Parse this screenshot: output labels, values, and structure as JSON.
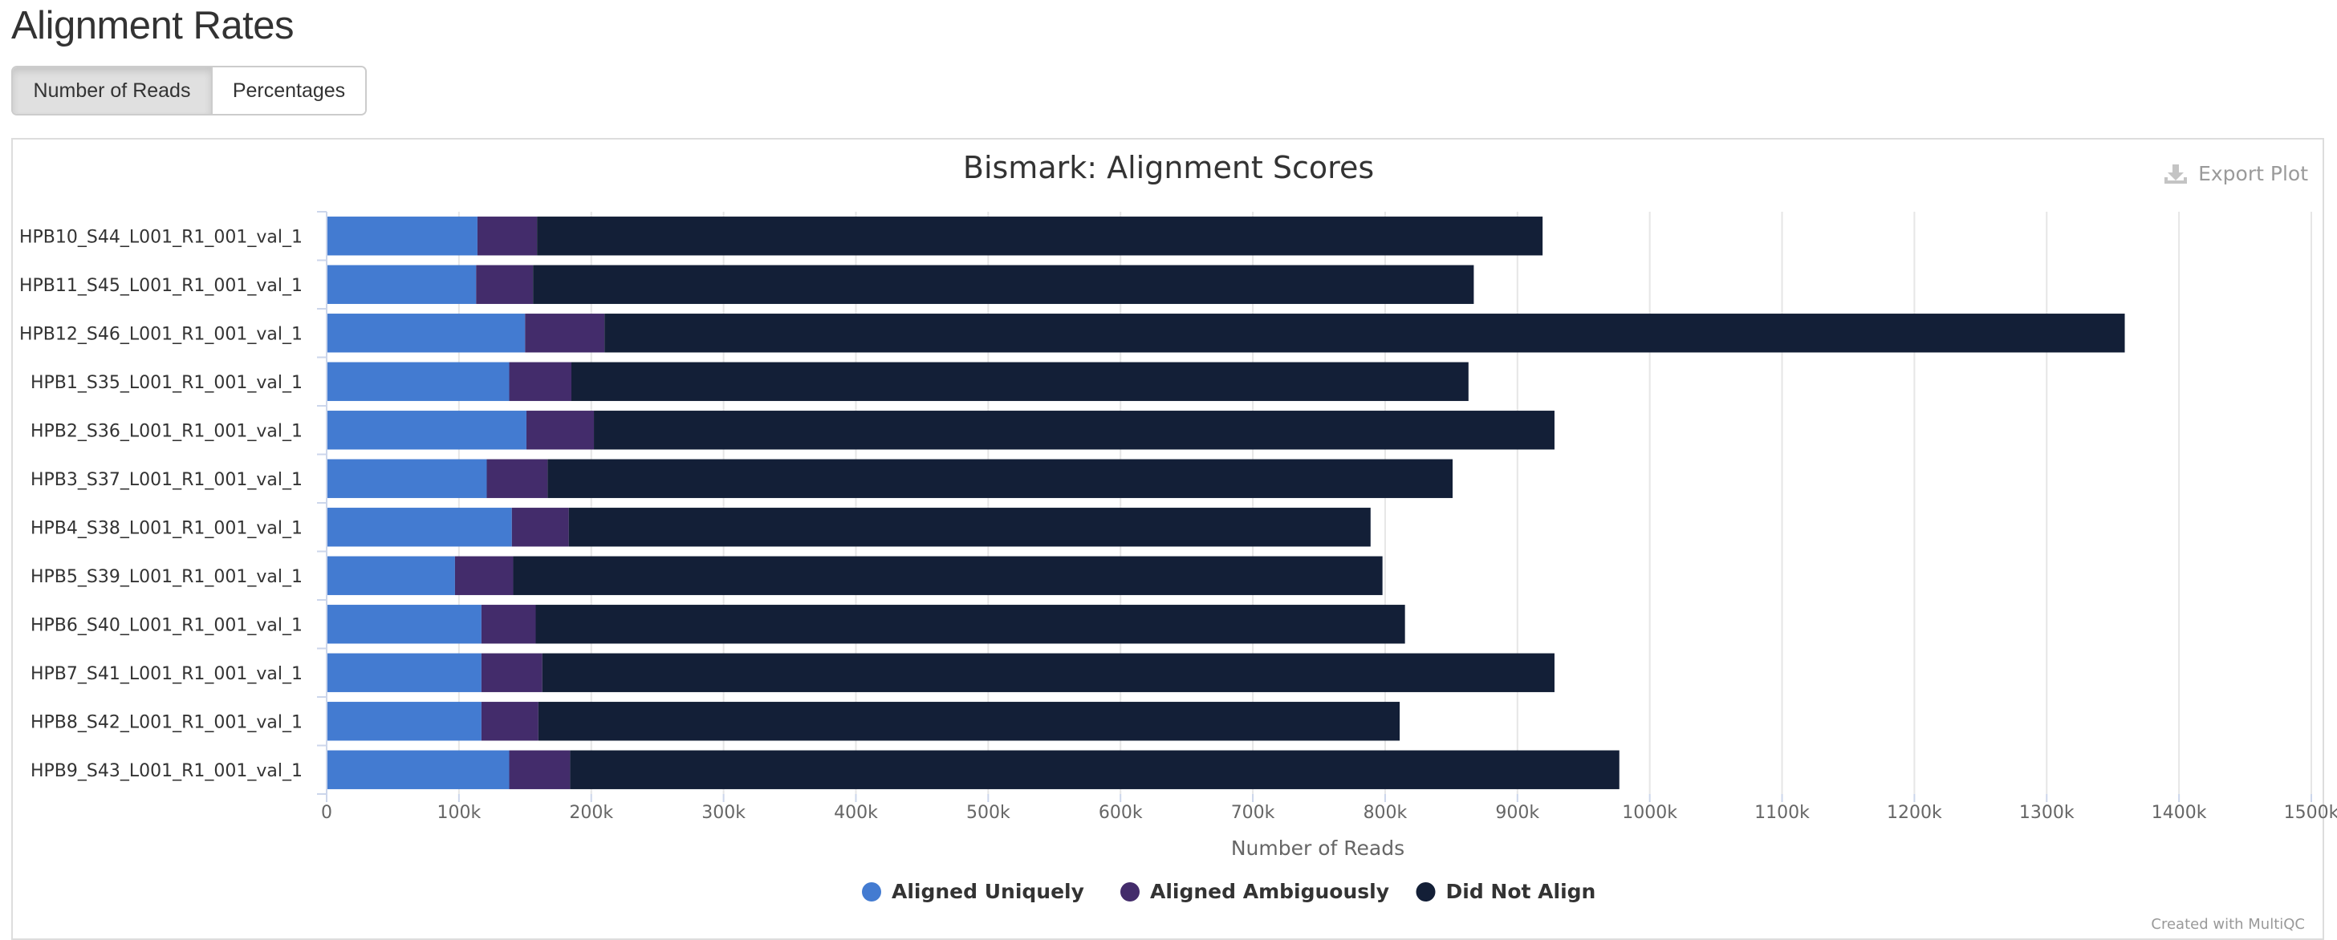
{
  "page": {
    "heading": "Alignment Rates"
  },
  "toggle": {
    "number_label": "Number of Reads",
    "percent_label": "Percentages",
    "active": "number"
  },
  "toolbar": {
    "export_label": "Export Plot",
    "export_icon": "download-icon"
  },
  "credits": "Created with MultiQC",
  "chart_data": {
    "type": "bar",
    "orientation": "horizontal",
    "stacked": true,
    "title": "Bismark: Alignment Scores",
    "xlabel": "Number of Reads",
    "ylabel": "",
    "xlim": [
      0,
      1500000
    ],
    "xticks": [
      "0",
      "100k",
      "200k",
      "300k",
      "400k",
      "500k",
      "600k",
      "700k",
      "800k",
      "900k",
      "1000k",
      "1100k",
      "1200k",
      "1300k",
      "1400k",
      "1500k"
    ],
    "grid": "vertical",
    "legend_position": "bottom-center",
    "categories": [
      "HPB10_S44_L001_R1_001_val_1",
      "HPB11_S45_L001_R1_001_val_1",
      "HPB12_S46_L001_R1_001_val_1",
      "HPB1_S35_L001_R1_001_val_1",
      "HPB2_S36_L001_R1_001_val_1",
      "HPB3_S37_L001_R1_001_val_1",
      "HPB4_S38_L001_R1_001_val_1",
      "HPB5_S39_L001_R1_001_val_1",
      "HPB6_S40_L001_R1_001_val_1",
      "HPB7_S41_L001_R1_001_val_1",
      "HPB8_S42_L001_R1_001_val_1",
      "HPB9_S43_L001_R1_001_val_1"
    ],
    "series": [
      {
        "name": "Aligned Uniquely",
        "color": "#437bd1",
        "values": [
          114000,
          113000,
          150000,
          138000,
          151000,
          121000,
          140000,
          97000,
          117000,
          117000,
          117000,
          138000
        ]
      },
      {
        "name": "Aligned Ambiguously",
        "color": "#432c6b",
        "values": [
          45000,
          43000,
          60000,
          47000,
          51000,
          46000,
          43000,
          44000,
          41000,
          46000,
          43000,
          46000
        ]
      },
      {
        "name": "Did Not Align",
        "color": "#131f37",
        "values": [
          760000,
          711000,
          1149000,
          678000,
          726000,
          684000,
          606000,
          657000,
          657000,
          765000,
          651000,
          793000
        ]
      }
    ]
  }
}
